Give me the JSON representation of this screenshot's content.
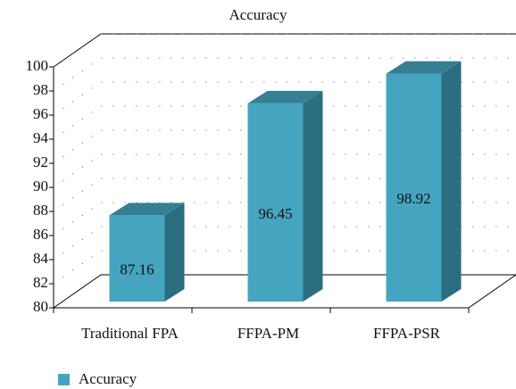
{
  "chart_data": {
    "type": "bar3d",
    "title": "Accuracy",
    "categories": [
      "Traditional FPA",
      "FFPA-PM",
      "FFPA-PSR"
    ],
    "series": [
      {
        "name": "Accuracy",
        "color": "#45a5c0",
        "values": [
          87.16,
          96.45,
          98.92
        ]
      }
    ],
    "ylim": [
      80,
      100
    ],
    "yticks": [
      80,
      82,
      84,
      86,
      88,
      90,
      92,
      94,
      96,
      98,
      100
    ],
    "grid": true,
    "legend": "bottom-left"
  }
}
